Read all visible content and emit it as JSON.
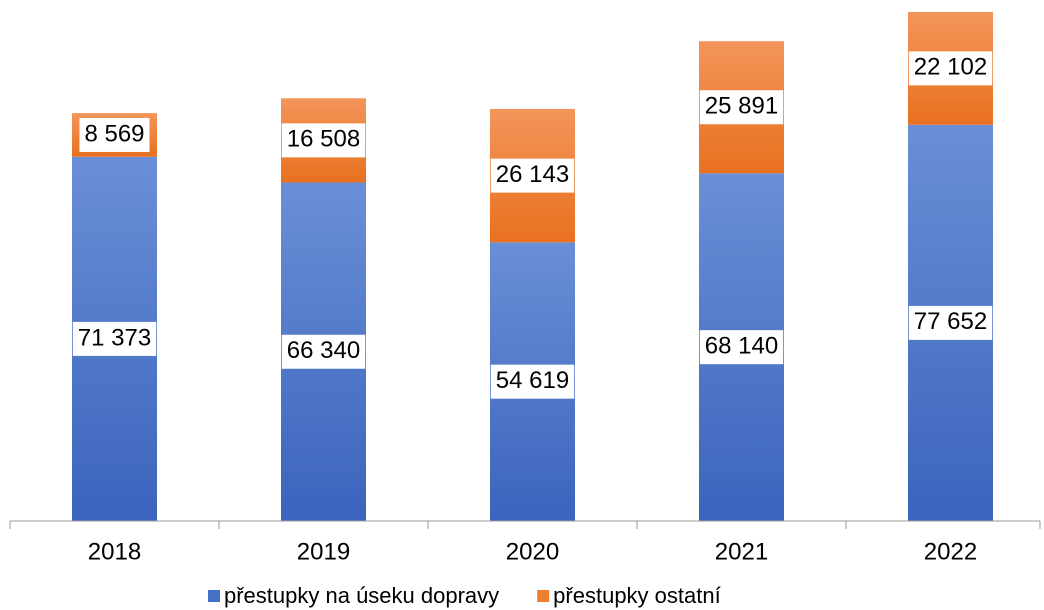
{
  "chart_data": {
    "type": "stacked_bar",
    "categories": [
      "2018",
      "2019",
      "2020",
      "2021",
      "2022"
    ],
    "series": [
      {
        "name": "přestupky na úseku dopravy",
        "color": "#4472c4",
        "values": [
          71373,
          66340,
          54619,
          68140,
          77652
        ],
        "value_labels": [
          "71 373",
          "66 340",
          "54 619",
          "68 140",
          "77 652"
        ]
      },
      {
        "name": "přestupky ostatní",
        "color": "#ed7d31",
        "values": [
          8569,
          16508,
          26143,
          25891,
          22102
        ],
        "value_labels": [
          "8 569",
          "16 508",
          "26 143",
          "25 891",
          "22 102"
        ]
      }
    ]
  }
}
